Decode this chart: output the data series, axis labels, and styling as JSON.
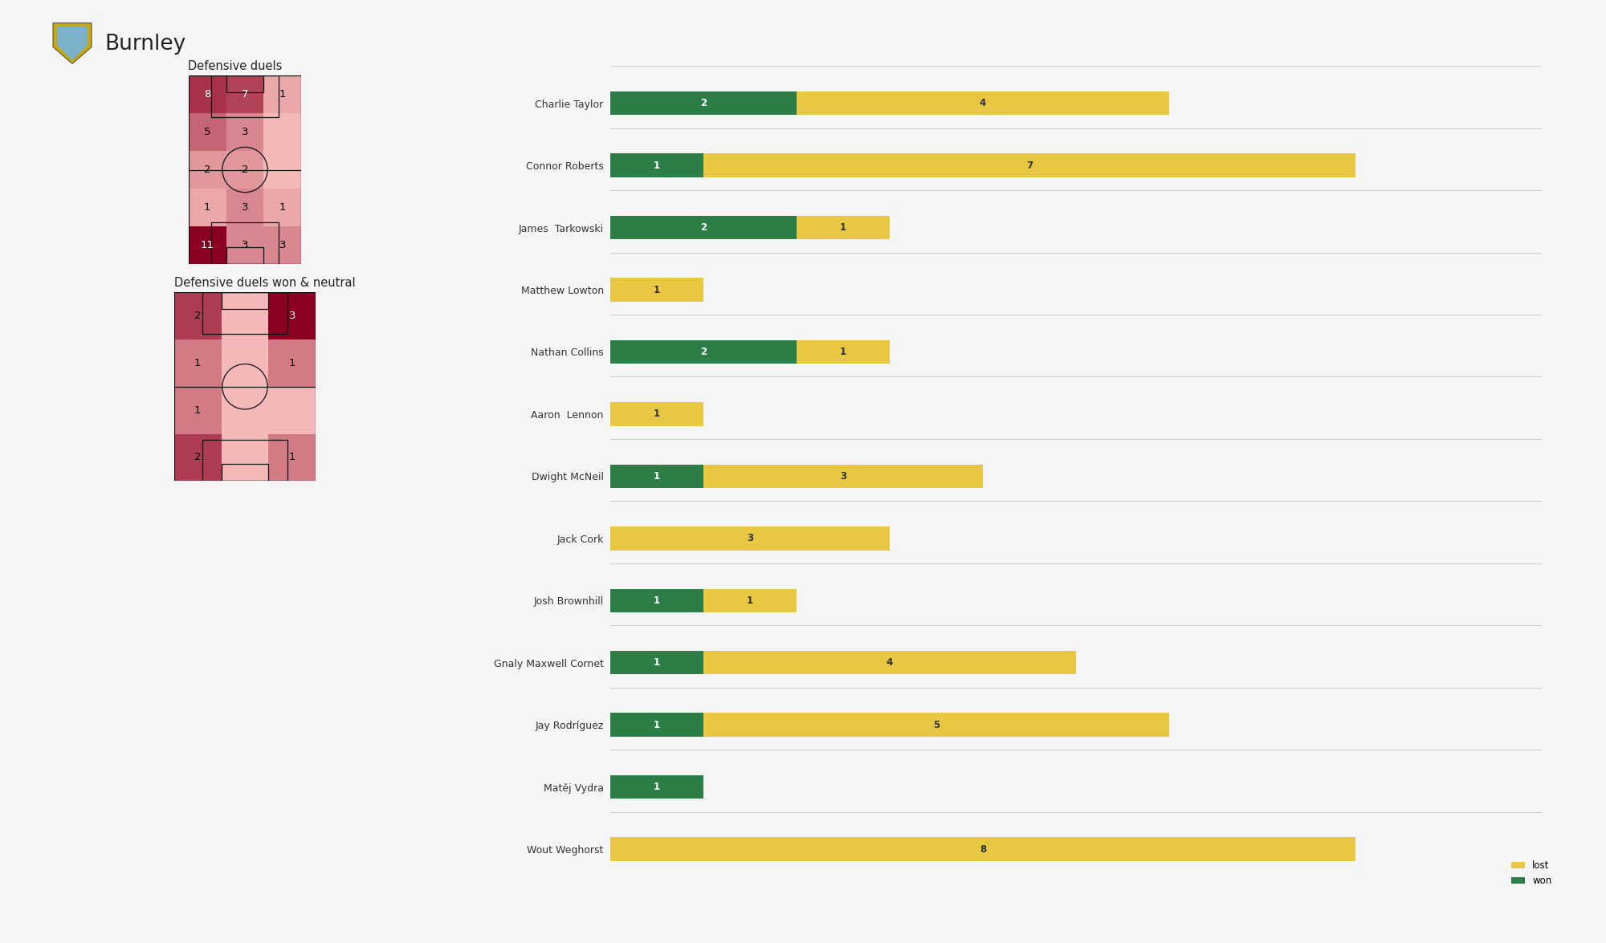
{
  "title": "Burnley",
  "heatmap1_title": "Defensive duels",
  "heatmap2_title": "Defensive duels won & neutral",
  "heatmap1_grid": [
    [
      8,
      7,
      1
    ],
    [
      5,
      3,
      0
    ],
    [
      2,
      2,
      0
    ],
    [
      1,
      3,
      1
    ],
    [
      11,
      3,
      3
    ]
  ],
  "heatmap2_grid": [
    [
      2,
      0,
      3
    ],
    [
      1,
      0,
      1
    ],
    [
      1,
      0,
      0
    ],
    [
      2,
      0,
      1
    ]
  ],
  "players": [
    "Charlie Taylor",
    "Connor Roberts",
    "James  Tarkowski",
    "Matthew Lowton",
    "Nathan Collins",
    "Aaron  Lennon",
    "Dwight McNeil",
    "Jack Cork",
    "Josh Brownhill",
    "Gnaly Maxwell Cornet",
    "Jay Rodríguez",
    "Matěj Vydra",
    "Wout Weghorst"
  ],
  "won": [
    2,
    1,
    2,
    0,
    2,
    0,
    1,
    0,
    1,
    1,
    1,
    1,
    0
  ],
  "lost": [
    4,
    7,
    1,
    1,
    1,
    1,
    3,
    3,
    1,
    4,
    5,
    0,
    8
  ],
  "color_won": "#2d7d46",
  "color_lost": "#e8c842",
  "background_color": "#f5f5f5",
  "heatmap1_vmax": 11,
  "heatmap2_vmax": 3,
  "color_low": "#f5b8b8",
  "color_high": "#8b0020"
}
